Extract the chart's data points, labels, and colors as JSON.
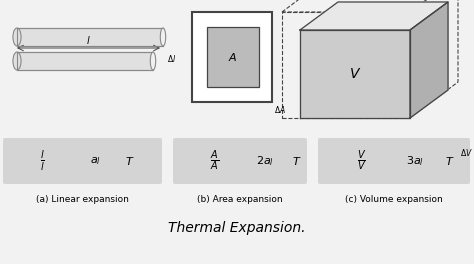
{
  "title": "Thermal Expansion.",
  "bg_color": "#f2f2f2",
  "formula_bg": "#d4d4d4",
  "labels_a": "(a) Linear expansion",
  "labels_b": "(b) Area expansion",
  "labels_c": "(c) Volume expansion",
  "rod_face": "#e0e0e0",
  "rod_edge": "#888888",
  "cube_front": "#cccccc",
  "cube_top": "#e8e8e8",
  "cube_right": "#b0b0b0",
  "box_outer_face": "#ffffff",
  "box_inner_face": "#bbbbbb",
  "dark": "#444444",
  "white": "#ffffff"
}
